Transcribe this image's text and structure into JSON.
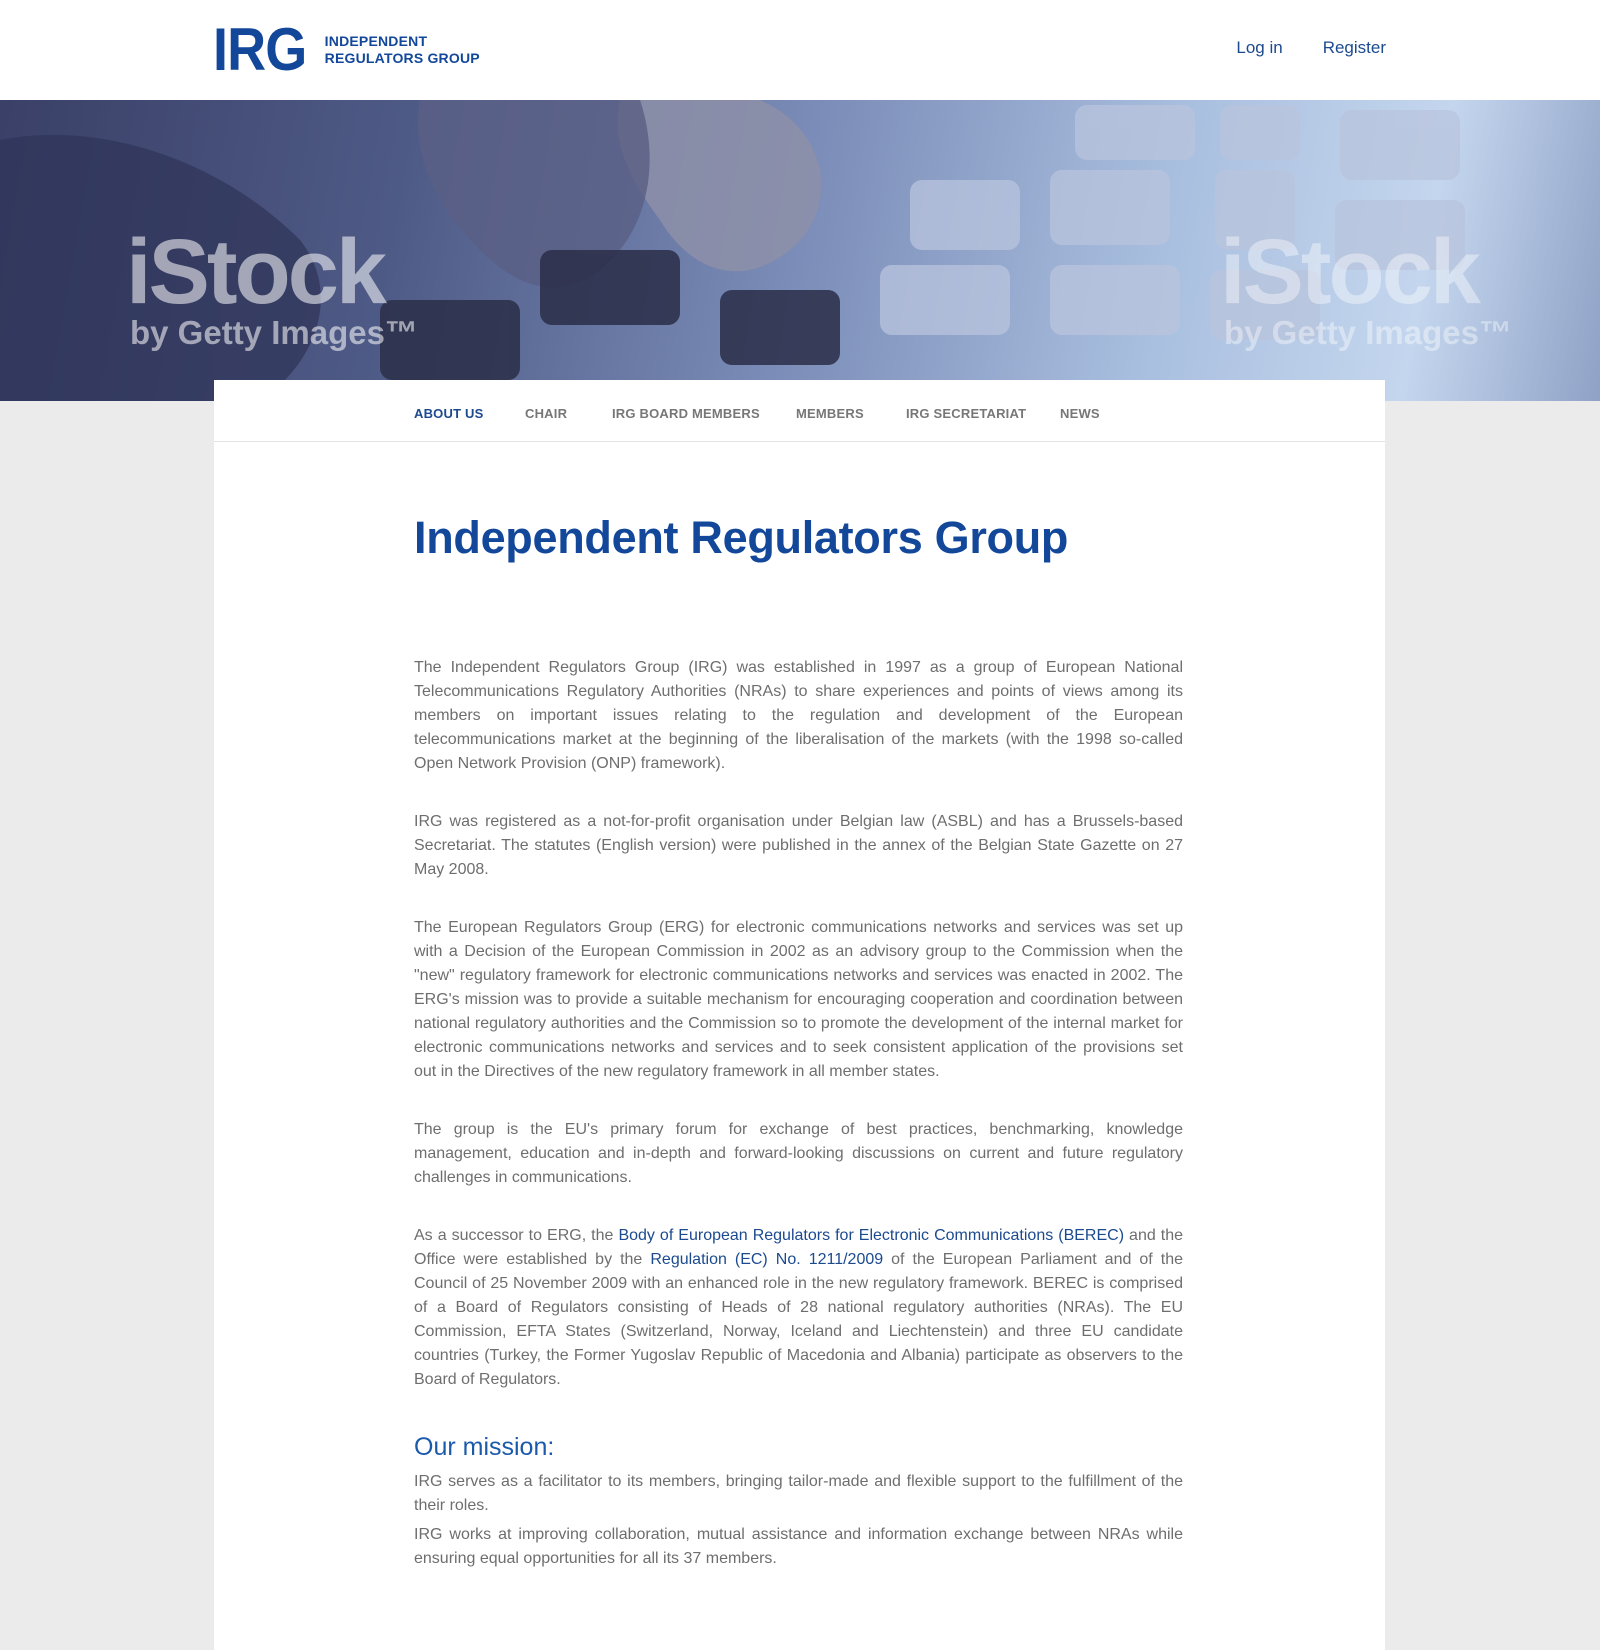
{
  "header": {
    "logo_mark": "IRG",
    "logo_line1": "INDEPENDENT",
    "logo_line2": "REGULATORS GROUP",
    "login_label": "Log in",
    "register_label": "Register"
  },
  "hero": {
    "watermark_big": "iStock",
    "watermark_small": "by Getty Images™"
  },
  "nav": {
    "items": [
      {
        "label": "ABOUT US"
      },
      {
        "label": "CHAIR"
      },
      {
        "label": "IRG BOARD MEMBERS"
      },
      {
        "label": "MEMBERS"
      },
      {
        "label": "IRG SECRETARIAT"
      },
      {
        "label": "NEWS"
      }
    ]
  },
  "main": {
    "title": "Independent Regulators Group",
    "p1": "The Independent Regulators Group (IRG) was established in 1997 as a group of European National Telecommunications Regulatory Authorities (NRAs) to share experiences and points of views among its members on important issues relating to the regulation and development of the European telecommunications market at the beginning of the liberalisation of the markets (with the 1998 so-called Open Network Provision (ONP) framework).",
    "p2": "IRG was registered as a not-for-profit organisation under Belgian law (ASBL) and has a Brussels-based Secretariat. The statutes (English version) were published in the annex of the Belgian State Gazette on 27 May 2008.",
    "p3": "The European Regulators Group (ERG) for electronic communications networks and services was set up with a Decision of the European Commission in 2002 as an advisory group to the Commission when the \"new\" regulatory framework for electronic communications networks and services was enacted in 2002. The ERG's mission was to provide a suitable mechanism for encouraging cooperation and coordination between national regulatory authorities and the Commission so to promote the development of the internal market for electronic communications networks and services and to seek consistent application of the provisions set out in the Directives of the new regulatory framework in all member states.",
    "p4": "The group is the EU's primary forum for exchange of best practices, benchmarking, knowledge management, education and in-depth and forward-looking discussions on current and future regulatory challenges in communications.",
    "p5_a": "As a successor to ERG, the ",
    "p5_link1": "Body of European Regulators for Electronic Communications (BEREC)",
    "p5_b": " and the Office were established by the ",
    "p5_link2": "Regulation (EC) No. 1211/2009",
    "p5_c": " of the European Parliament and of the Council of 25 November 2009 with an enhanced role in the new regulatory framework. BEREC is comprised of a Board of Regulators consisting of Heads of 28 national regulatory authorities (NRAs). The EU Commission, EFTA States (Switzerland, Norway, Iceland and Liechtenstein) and three EU candidate countries (Turkey, the Former Yugoslav Republic of Macedonia and Albania) participate as observers to the Board of Regulators.",
    "mission_title": "Our mission:",
    "mission_p1": "IRG serves as a facilitator to its members, bringing tailor-made and flexible support to the fulfillment of the their roles.",
    "mission_p2": "IRG works at improving collaboration, mutual assistance and information exchange between NRAs while ensuring equal opportunities for all its 37 members."
  }
}
